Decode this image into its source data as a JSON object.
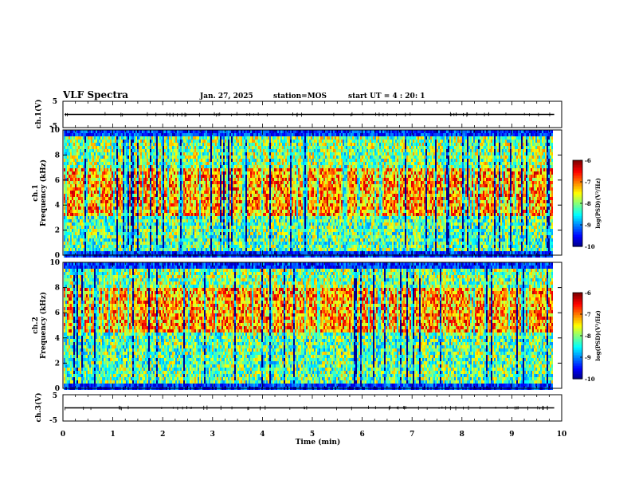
{
  "header": {
    "title": "VLF Spectra",
    "date": "Jan. 27, 2025",
    "station": "station=MOS",
    "start_ut": "start UT =  4 : 20: 1"
  },
  "chart_data": [
    {
      "type": "line",
      "name": "waveform-top",
      "ylabel": "ch.1(V)",
      "ylim": [
        -5,
        5
      ],
      "yticks": [
        "5",
        "-5"
      ],
      "xlim": [
        0,
        10
      ],
      "baseline": 0
    },
    {
      "type": "heatmap",
      "name": "spectrogram-ch1",
      "ylabel_line1": "ch.1",
      "ylabel_line2": "Frequency (kHz)",
      "ylim": [
        0,
        10
      ],
      "yticks": [
        "0",
        "2",
        "4",
        "6",
        "8",
        "10"
      ],
      "xlim": [
        0,
        10
      ],
      "data_end_min": 9.8,
      "colorbar": {
        "label": "log(PSD)(V²/Hz)",
        "range": [
          -10,
          -6
        ],
        "ticks": [
          "-6",
          "-7",
          "-8",
          "-9",
          "-10"
        ]
      },
      "energy_band_khz": [
        3,
        7
      ]
    },
    {
      "type": "heatmap",
      "name": "spectrogram-ch2",
      "ylabel_line1": "ch.2",
      "ylabel_line2": "Frequency (kHz)",
      "ylim": [
        0,
        10
      ],
      "yticks": [
        "0",
        "2",
        "4",
        "6",
        "8",
        "10"
      ],
      "xlim": [
        0,
        10
      ],
      "data_end_min": 9.8,
      "colorbar": {
        "label": "log(PSD)(V²/Hz)",
        "range": [
          -10,
          -6
        ],
        "ticks": [
          "-6",
          "-7",
          "-8",
          "-9",
          "-10"
        ]
      },
      "energy_band_khz": [
        4.5,
        8
      ]
    },
    {
      "type": "line",
      "name": "waveform-bottom",
      "ylabel": "ch.3(V)",
      "ylim": [
        -5,
        5
      ],
      "yticks": [
        "5",
        "-5"
      ],
      "xlim": [
        0,
        10
      ],
      "baseline": 0
    }
  ],
  "xaxis": {
    "label": "Time (min)",
    "ticks": [
      "0",
      "1",
      "2",
      "3",
      "4",
      "5",
      "6",
      "7",
      "8",
      "9",
      "10"
    ]
  }
}
